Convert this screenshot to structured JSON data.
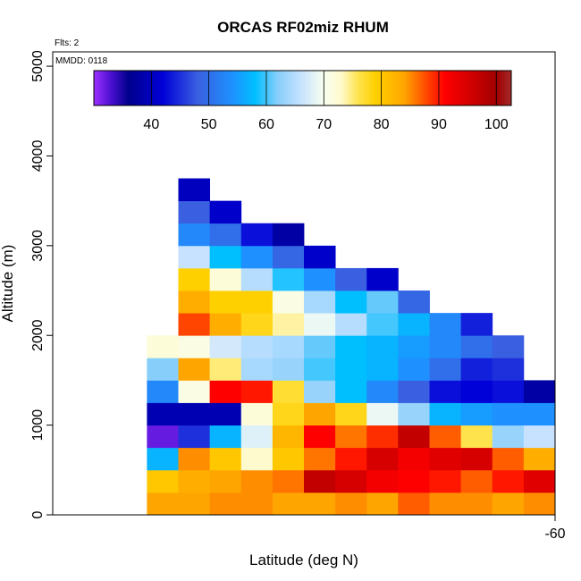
{
  "chart_data": {
    "type": "heatmap",
    "title": "ORCAS RF02miz RHUM",
    "annotations": [
      "Flts: 2",
      "MMDD: 0118"
    ],
    "xlabel": "Latitude (deg N)",
    "ylabel": "Altitude (m)",
    "xlim": [
      -68,
      -60
    ],
    "xticks": [
      -60
    ],
    "ylim": [
      0,
      5160
    ],
    "yticks": [
      0,
      1000,
      2000,
      3000,
      4000,
      5000
    ],
    "xbins": [
      -66.5,
      -66,
      -65.5,
      -65,
      -64.5,
      -64,
      -63.5,
      -63,
      -62.5,
      -62,
      -61.5,
      -61,
      -60.5,
      -60
    ],
    "ybins": [
      0,
      250,
      500,
      750,
      1000,
      1250,
      1500,
      1750,
      2000,
      2250,
      2500,
      2750,
      3000,
      3250,
      3500,
      3750
    ],
    "values": [
      [
        84,
        84,
        85,
        85,
        84,
        84,
        85,
        84,
        87,
        85,
        85,
        84,
        85
      ],
      [
        80,
        83,
        84,
        85,
        86,
        97,
        95,
        92,
        91,
        90,
        87,
        90,
        94
      ],
      [
        57,
        85,
        80,
        73,
        80,
        86,
        90,
        95,
        92,
        94,
        95,
        87,
        83
      ],
      [
        32,
        45,
        57,
        68,
        82,
        91,
        86,
        89,
        97,
        87,
        76,
        63,
        66
      ],
      [
        39,
        39,
        39,
        72,
        78,
        84,
        78,
        69,
        63,
        57,
        55,
        54,
        54
      ],
      [
        53,
        71,
        91,
        90,
        77,
        63,
        58,
        53,
        48,
        43,
        42,
        43,
        38
      ],
      [
        62,
        84,
        75,
        64,
        63,
        60,
        58,
        57,
        54,
        50,
        44,
        45,
        null
      ],
      [
        72,
        71,
        67,
        65,
        64,
        61,
        58,
        57,
        55,
        53,
        50,
        48,
        null
      ],
      [
        null,
        88,
        83,
        78,
        74,
        69,
        65,
        60,
        57,
        53,
        44,
        null,
        null
      ],
      [
        null,
        83,
        79,
        79,
        71,
        64,
        58,
        61,
        49,
        null,
        null,
        null,
        null
      ],
      [
        null,
        79,
        72,
        65,
        59,
        54,
        48,
        41,
        null,
        null,
        null,
        null,
        null
      ],
      [
        null,
        66,
        58,
        54,
        49,
        41,
        null,
        null,
        null,
        null,
        null,
        null,
        null
      ],
      [
        null,
        53,
        50,
        43,
        38,
        null,
        null,
        null,
        null,
        null,
        null,
        null,
        null
      ],
      [
        null,
        48,
        41,
        null,
        null,
        null,
        null,
        null,
        null,
        null,
        null,
        null,
        null
      ],
      [
        null,
        40,
        null,
        null,
        null,
        null,
        null,
        null,
        null,
        null,
        null,
        null,
        null
      ]
    ],
    "zlim": [
      30,
      102.6
    ],
    "zticks": [
      40,
      50,
      60,
      70,
      80,
      90,
      100
    ],
    "colorscale": [
      {
        "value": 30,
        "color": "#9b30ff"
      },
      {
        "value": 33,
        "color": "#4b10d0"
      },
      {
        "value": 36,
        "color": "#00008b"
      },
      {
        "value": 42,
        "color": "#0000d8"
      },
      {
        "value": 48,
        "color": "#3a5fe0"
      },
      {
        "value": 54,
        "color": "#1e90ff"
      },
      {
        "value": 58,
        "color": "#00bfff"
      },
      {
        "value": 62,
        "color": "#87cefa"
      },
      {
        "value": 66,
        "color": "#c6e2ff"
      },
      {
        "value": 70,
        "color": "#f8fff0"
      },
      {
        "value": 73,
        "color": "#fffacd"
      },
      {
        "value": 76,
        "color": "#ffe34d"
      },
      {
        "value": 79,
        "color": "#ffd000"
      },
      {
        "value": 84,
        "color": "#ffa500"
      },
      {
        "value": 88,
        "color": "#ff4500"
      },
      {
        "value": 91,
        "color": "#ff0000"
      },
      {
        "value": 96,
        "color": "#cd0000"
      },
      {
        "value": 100,
        "color": "#a00000"
      },
      {
        "value": 102.6,
        "color": "#a52a2a"
      }
    ]
  }
}
